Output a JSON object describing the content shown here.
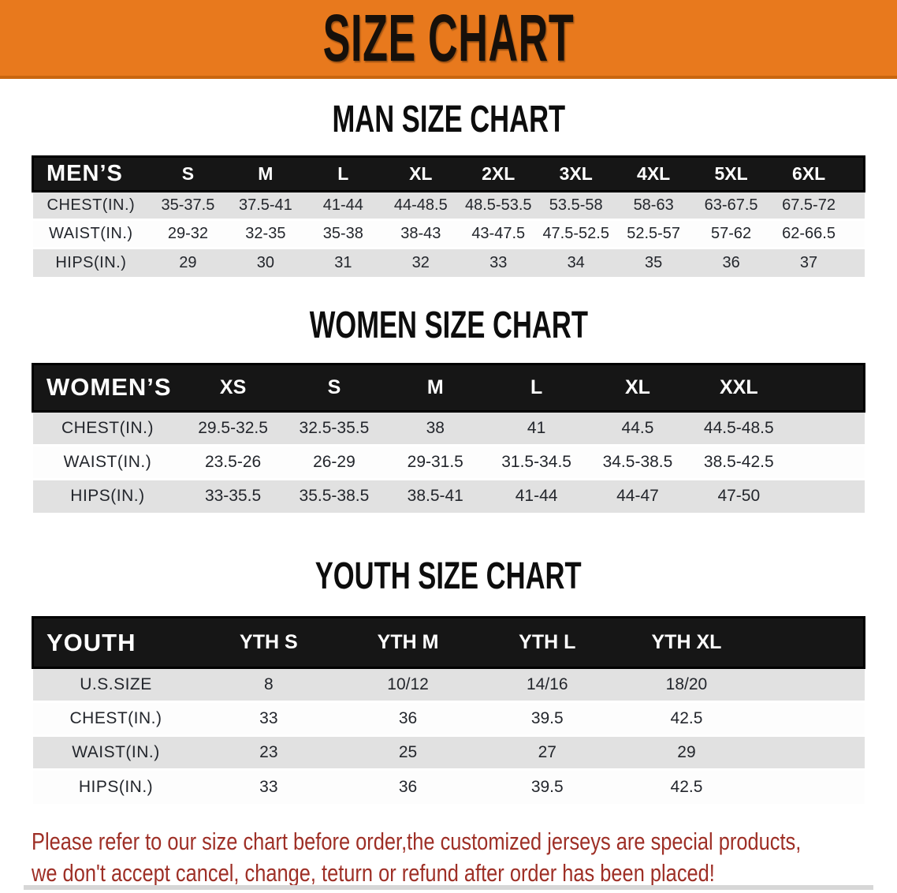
{
  "banner": {
    "title": "SIZE CHART",
    "bg_color": "#E8791D",
    "text_color": "#17100a"
  },
  "sections": [
    {
      "title": "MAN SIZE CHART",
      "header_label": "MEN’S",
      "columns": [
        "S",
        "M",
        "L",
        "XL",
        "2XL",
        "3XL",
        "4XL",
        "5XL",
        "6XL"
      ],
      "rows": [
        {
          "label": "CHEST(IN.)",
          "values": [
            "35-37.5",
            "37.5-41",
            "41-44",
            "44-48.5",
            "48.5-53.5",
            "53.5-58",
            "58-63",
            "63-67.5",
            "67.5-72"
          ]
        },
        {
          "label": "WAIST(IN.)",
          "values": [
            "29-32",
            "32-35",
            "35-38",
            "38-43",
            "43-47.5",
            "47.5-52.5",
            "52.5-57",
            "57-62",
            "62-66.5"
          ]
        },
        {
          "label": "HIPS(IN.)",
          "values": [
            "29",
            "30",
            "31",
            "32",
            "33",
            "34",
            "35",
            "36",
            "37"
          ]
        }
      ]
    },
    {
      "title": "WOMEN SIZE CHART",
      "header_label": "WOMEN’S",
      "columns": [
        "XS",
        "S",
        "M",
        "L",
        "XL",
        "XXL"
      ],
      "rows": [
        {
          "label": "CHEST(IN.)",
          "values": [
            "29.5-32.5",
            "32.5-35.5",
            "38",
            "41",
            "44.5",
            "44.5-48.5"
          ]
        },
        {
          "label": "WAIST(IN.)",
          "values": [
            "23.5-26",
            "26-29",
            "29-31.5",
            "31.5-34.5",
            "34.5-38.5",
            "38.5-42.5"
          ]
        },
        {
          "label": "HIPS(IN.)",
          "values": [
            "33-35.5",
            "35.5-38.5",
            "38.5-41",
            "41-44",
            "44-47",
            "47-50"
          ]
        }
      ]
    },
    {
      "title": "YOUTH SIZE CHART",
      "header_label": "YOUTH",
      "columns": [
        "YTH S",
        "YTH M",
        "YTH L",
        "YTH XL"
      ],
      "rows": [
        {
          "label": "U.S.SIZE",
          "values": [
            "8",
            "10/12",
            "14/16",
            "18/20"
          ]
        },
        {
          "label": "CHEST(IN.)",
          "values": [
            "33",
            "36",
            "39.5",
            "42.5"
          ]
        },
        {
          "label": "WAIST(IN.)",
          "values": [
            "23",
            "25",
            "27",
            "29"
          ]
        },
        {
          "label": "HIPS(IN.)",
          "values": [
            "33",
            "36",
            "39.5",
            "42.5"
          ]
        }
      ]
    }
  ],
  "disclaimer": {
    "line1": "Please refer to our size chart before order,the customized jerseys are special products,",
    "line2": "we don't accept cancel, change, teturn or refund after order has been placed!",
    "color": "#9E2F26"
  }
}
